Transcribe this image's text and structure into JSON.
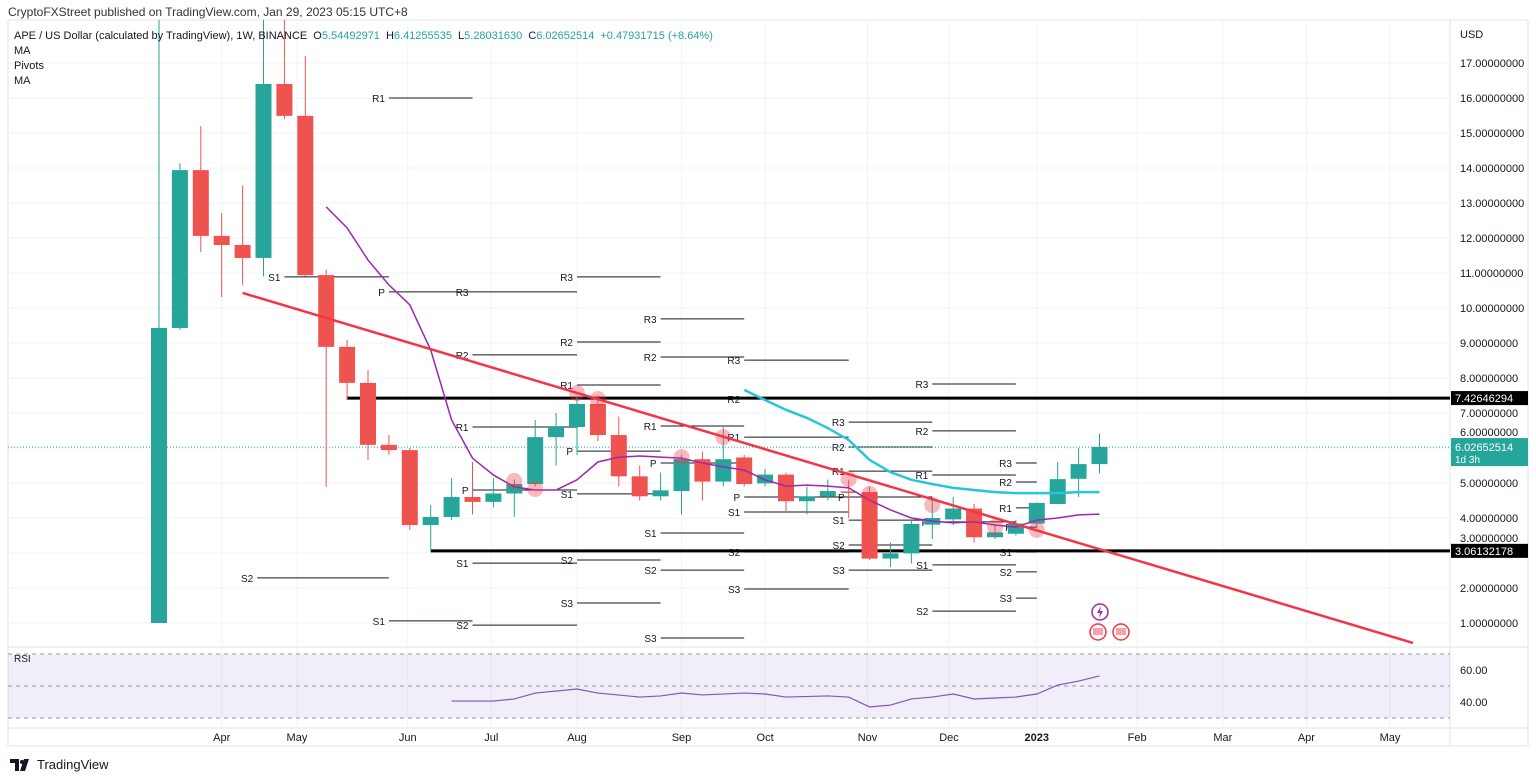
{
  "header": {
    "published": "CryptoFXStreet published on TradingView.com, Jan 29, 2023 05:15 UTC+8"
  },
  "legend": {
    "symbol": "APE / US Dollar (calculated by TradingView), 1W, BINANCE",
    "o_label": "O",
    "o": "5.54492971",
    "h_label": "H",
    "h": "6.41255535",
    "l_label": "L",
    "l": "5.28031630",
    "c_label": "C",
    "c": "6.02652514",
    "change": "+0.47931715 (+8.64%)",
    "indicators": [
      "MA",
      "Pivots",
      "MA"
    ]
  },
  "brand": {
    "name": "TradingView"
  },
  "colors": {
    "up": "#26a69a",
    "down": "#ef5350",
    "trend": "#f23645",
    "ma_fast": "#9c27b0",
    "ma_slow": "#26c6da",
    "rsi": "#7e57c2"
  },
  "chart_data": {
    "type": "candlestick",
    "title": "APE / US Dollar, 1W, BINANCE",
    "ylabel": "USD",
    "scale": "linear",
    "ylim": [
      0.4,
      18.8
    ],
    "yticks": [
      "1.00000000",
      "2.00000000",
      "3.00000000",
      "4.00000000",
      "5.00000000",
      "6.00000000",
      "7.00000000",
      "8.00000000",
      "9.00000000",
      "10.00000000",
      "11.00000000",
      "12.00000000",
      "13.00000000",
      "14.00000000",
      "15.00000000",
      "16.00000000",
      "17.00000000"
    ],
    "xticks": [
      {
        "label": "Apr",
        "week": 3
      },
      {
        "label": "May",
        "week": 6.6
      },
      {
        "label": "Jun",
        "week": 11.9
      },
      {
        "label": "Jul",
        "week": 15.9
      },
      {
        "label": "Aug",
        "week": 20
      },
      {
        "label": "Sep",
        "week": 25
      },
      {
        "label": "Oct",
        "week": 29
      },
      {
        "label": "Nov",
        "week": 33.9
      },
      {
        "label": "Dec",
        "week": 37.8
      },
      {
        "label": "2023",
        "week": 42
      },
      {
        "label": "Feb",
        "week": 46.8
      },
      {
        "label": "Mar",
        "week": 50.9
      },
      {
        "label": "Apr",
        "week": 54.9
      },
      {
        "label": "May",
        "week": 58.9
      }
    ],
    "candles": [
      [
        1.0,
        18.8,
        1.0,
        9.43
      ],
      [
        9.43,
        14.14,
        9.37,
        13.94
      ],
      [
        13.94,
        15.2,
        11.6,
        12.06
      ],
      [
        12.06,
        12.71,
        10.31,
        11.8
      ],
      [
        11.8,
        13.5,
        10.66,
        11.43
      ],
      [
        11.43,
        18.8,
        10.9,
        16.4
      ],
      [
        16.4,
        18.8,
        15.4,
        15.49
      ],
      [
        15.49,
        17.2,
        10.9,
        10.94
      ],
      [
        10.94,
        11.1,
        4.89,
        8.89
      ],
      [
        8.89,
        9.09,
        7.37,
        7.86
      ],
      [
        7.86,
        8.23,
        5.66,
        6.09
      ],
      [
        6.09,
        6.37,
        5.8,
        5.94
      ],
      [
        5.94,
        6.0,
        3.66,
        3.8
      ],
      [
        3.8,
        4.37,
        3.06,
        4.03
      ],
      [
        4.03,
        5.14,
        3.94,
        4.6
      ],
      [
        4.6,
        5.6,
        4.1,
        4.46
      ],
      [
        4.46,
        5.14,
        4.3,
        4.7
      ],
      [
        4.7,
        5.1,
        4.03,
        4.97
      ],
      [
        4.97,
        6.8,
        4.9,
        6.31
      ],
      [
        6.31,
        7.0,
        5.5,
        6.6
      ],
      [
        6.6,
        7.5,
        5.8,
        7.26
      ],
      [
        7.26,
        7.5,
        6.2,
        6.37
      ],
      [
        6.37,
        6.9,
        4.9,
        5.19
      ],
      [
        5.19,
        5.5,
        4.5,
        4.62
      ],
      [
        4.62,
        5.3,
        4.5,
        4.79
      ],
      [
        4.77,
        5.8,
        4.1,
        5.68
      ],
      [
        5.68,
        5.9,
        4.5,
        5.04
      ],
      [
        5.04,
        6.6,
        4.9,
        5.68
      ],
      [
        5.73,
        5.8,
        4.9,
        4.97
      ],
      [
        4.99,
        5.4,
        4.9,
        5.24
      ],
      [
        5.24,
        5.3,
        4.2,
        4.48
      ],
      [
        4.48,
        4.9,
        4.1,
        4.62
      ],
      [
        4.62,
        5.1,
        4.5,
        4.77
      ],
      [
        4.76,
        5.1,
        4.0,
        4.74
      ],
      [
        4.74,
        4.9,
        2.8,
        2.84
      ],
      [
        2.84,
        3.3,
        2.6,
        2.99
      ],
      [
        2.99,
        3.95,
        2.7,
        3.83
      ],
      [
        3.81,
        4.6,
        3.4,
        4.0
      ],
      [
        3.96,
        4.6,
        3.8,
        4.27
      ],
      [
        4.27,
        4.4,
        3.3,
        3.45
      ],
      [
        3.45,
        3.8,
        3.4,
        3.59
      ],
      [
        3.55,
        3.95,
        3.5,
        3.84
      ],
      [
        3.84,
        4.45,
        3.7,
        4.43
      ],
      [
        4.4,
        5.6,
        4.4,
        5.11
      ],
      [
        5.12,
        6.0,
        4.6,
        5.54
      ],
      [
        5.54,
        6.41,
        5.28,
        6.03
      ]
    ],
    "last_price": {
      "value": "6.02652514",
      "countdown": "1d 3h"
    },
    "levels": [
      {
        "value": "7.42646294",
        "price": 7.4265,
        "from_week": 9
      },
      {
        "value": "3.06132178",
        "price": 3.0613,
        "from_week": 13
      }
    ],
    "trendline": {
      "from": [
        4,
        10.43
      ],
      "to": [
        60,
        0.43
      ]
    },
    "ma_fast": {
      "start_week": 8,
      "values": [
        12.89,
        12.29,
        11.37,
        10.66,
        10.09,
        8.8,
        6.8,
        5.71,
        5.23,
        4.89,
        4.8,
        4.8,
        5.09,
        5.6,
        5.74,
        5.77,
        5.74,
        5.71,
        5.57,
        5.46,
        5.37,
        5.09,
        4.91,
        4.94,
        4.91,
        4.86,
        4.51,
        4.23,
        4.0,
        3.91,
        3.86,
        3.89,
        3.8,
        3.74,
        3.94,
        4.0,
        4.09,
        4.11
      ]
    },
    "ma_slow": {
      "start_week": 28,
      "values": [
        7.66,
        7.37,
        7.09,
        6.86,
        6.57,
        6.23,
        5.66,
        5.31,
        5.09,
        4.97,
        4.86,
        4.8,
        4.74,
        4.71,
        4.71,
        4.71,
        4.74,
        4.74
      ]
    },
    "markers": [
      [
        17,
        5.06
      ],
      [
        18,
        4.83
      ],
      [
        20,
        7.57
      ],
      [
        21,
        7.4
      ],
      [
        25,
        5.74
      ],
      [
        27,
        6.31
      ],
      [
        33,
        5.11
      ],
      [
        34,
        4.69
      ],
      [
        37,
        4.37
      ],
      [
        40,
        3.74
      ],
      [
        42,
        3.66
      ]
    ],
    "pivots": [
      {
        "from": 6,
        "to": 11,
        "items": [
          [
            "S1",
            10.89
          ]
        ]
      },
      {
        "from": 4.7,
        "to": 11,
        "items": [
          [
            "S2",
            2.29
          ]
        ]
      },
      {
        "from": 11,
        "to": 15,
        "items": [
          [
            "R1",
            16.0
          ],
          [
            "P",
            10.46
          ],
          [
            "S1",
            1.06
          ]
        ]
      },
      {
        "from": 15,
        "to": 20,
        "items": [
          [
            "R3",
            10.46
          ],
          [
            "R2",
            8.66
          ],
          [
            "R1",
            6.6
          ],
          [
            "P",
            4.8
          ],
          [
            "S1",
            2.71
          ],
          [
            "S2",
            0.94
          ]
        ]
      },
      {
        "from": 20,
        "to": 24,
        "items": [
          [
            "R3",
            10.89
          ],
          [
            "R2",
            9.03
          ],
          [
            "R1",
            7.8
          ],
          [
            "P",
            5.91
          ],
          [
            "S1",
            4.69
          ],
          [
            "S2",
            2.8
          ],
          [
            "S3",
            1.57
          ]
        ]
      },
      {
        "from": 24,
        "to": 28,
        "items": [
          [
            "R3",
            9.69
          ],
          [
            "R2",
            8.6
          ],
          [
            "R1",
            6.63
          ],
          [
            "P",
            5.57
          ],
          [
            "S1",
            3.57
          ],
          [
            "S2",
            2.51
          ],
          [
            "S3",
            0.57
          ]
        ]
      },
      {
        "from": 28,
        "to": 33,
        "items": [
          [
            "R3",
            8.51
          ],
          [
            "R2",
            7.4
          ],
          [
            "R1",
            6.31
          ],
          [
            "P",
            4.6
          ],
          [
            "S1",
            4.17
          ],
          [
            "S2",
            3.03
          ],
          [
            "S3",
            1.97
          ]
        ]
      },
      {
        "from": 33,
        "to": 37,
        "items": [
          [
            "R3",
            6.74
          ],
          [
            "R2",
            6.03
          ],
          [
            "R1",
            5.34
          ],
          [
            "P",
            4.6
          ],
          [
            "S1",
            3.94
          ],
          [
            "S2",
            3.23
          ],
          [
            "S3",
            2.51
          ]
        ]
      },
      {
        "from": 37,
        "to": 41,
        "items": [
          [
            "R3",
            7.83
          ],
          [
            "R2",
            6.49
          ],
          [
            "R1",
            5.23
          ],
          [
            "P",
            3.89
          ],
          [
            "S1",
            2.66
          ],
          [
            "S2",
            1.34
          ]
        ]
      },
      {
        "from": 41,
        "to": 42,
        "items": [
          [
            "R3",
            5.57
          ],
          [
            "R2",
            5.03
          ],
          [
            "R1",
            4.29
          ],
          [
            "P",
            3.74
          ],
          [
            "S1",
            3.03
          ],
          [
            "S2",
            2.46
          ],
          [
            "S3",
            1.71
          ]
        ]
      }
    ],
    "rsi": {
      "label": "RSI",
      "yticks": [
        "60.00",
        "40.00"
      ],
      "bands": [
        70,
        50,
        30
      ],
      "points": [
        [
          14,
          40.6
        ],
        [
          16,
          40.6
        ],
        [
          17,
          41.9
        ],
        [
          18,
          45.6
        ],
        [
          20,
          48.1
        ],
        [
          21,
          45.6
        ],
        [
          23,
          43.1
        ],
        [
          24,
          43.8
        ],
        [
          25,
          45.6
        ],
        [
          26,
          44.4
        ],
        [
          28,
          45.6
        ],
        [
          29,
          45
        ],
        [
          30,
          43.1
        ],
        [
          32,
          43.8
        ],
        [
          33,
          43.1
        ],
        [
          34,
          36.9
        ],
        [
          35,
          38.1
        ],
        [
          36,
          41.9
        ],
        [
          37,
          43.1
        ],
        [
          38,
          45
        ],
        [
          39,
          41.9
        ],
        [
          40,
          42.5
        ],
        [
          41,
          43.1
        ],
        [
          42,
          45
        ],
        [
          43,
          50.6
        ],
        [
          44,
          53.1
        ],
        [
          45,
          56.3
        ]
      ]
    }
  }
}
